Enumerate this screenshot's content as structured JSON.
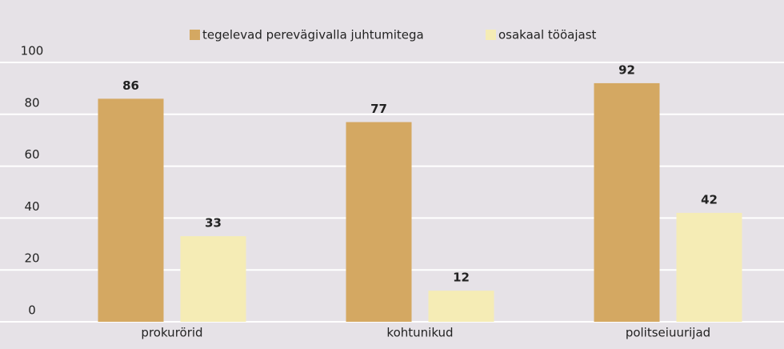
{
  "chart_data": {
    "type": "bar",
    "categories": [
      "prokurörid",
      "kohtunikud",
      "politseiuurijad"
    ],
    "series": [
      {
        "name": "tegelevad perevägivalla juhtumitega",
        "color": "#d4a862",
        "values": [
          86,
          77,
          92
        ]
      },
      {
        "name": "osakaal tööajast",
        "color": "#f5ecb5",
        "values": [
          33,
          12,
          42
        ]
      }
    ],
    "ylim": [
      0,
      100
    ],
    "yticks": [
      0,
      20,
      40,
      60,
      80,
      100
    ],
    "grid": true,
    "legend": "top"
  }
}
